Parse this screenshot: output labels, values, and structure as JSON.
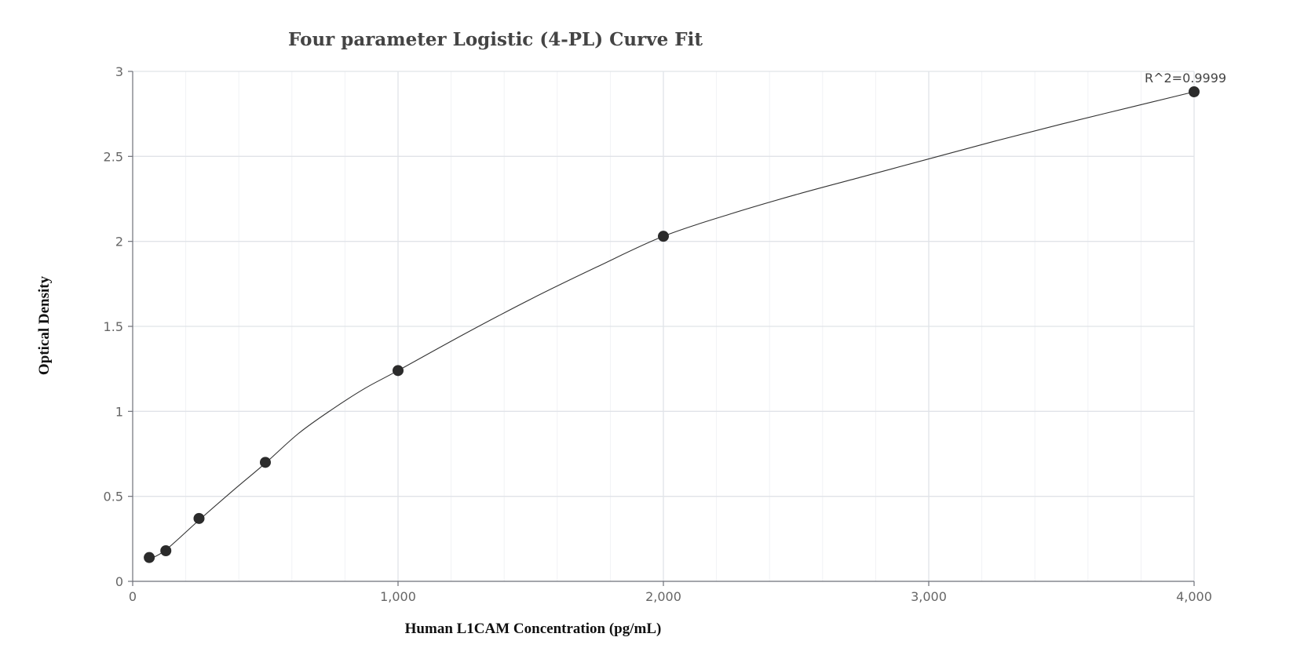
{
  "chart_data": {
    "type": "scatter",
    "title": "Four parameter Logistic (4-PL) Curve Fit",
    "xlabel": "Human L1CAM Concentration (pg/mL)",
    "ylabel": "Optical Density",
    "xlim": [
      0,
      4000
    ],
    "ylim": [
      0,
      3
    ],
    "x_ticks": [
      0,
      1000,
      2000,
      3000,
      4000
    ],
    "x_tick_labels": [
      "0",
      "1,000",
      "2,000",
      "3,000",
      "4,000"
    ],
    "y_ticks": [
      0,
      0.5,
      1,
      1.5,
      2,
      2.5,
      3
    ],
    "y_tick_labels": [
      "0",
      "0.5",
      "1",
      "1.5",
      "2",
      "2.5",
      "3"
    ],
    "grid": true,
    "series": [
      {
        "points": [
          {
            "x": 62.5,
            "y": 0.14
          },
          {
            "x": 125,
            "y": 0.18
          },
          {
            "x": 250,
            "y": 0.37
          },
          {
            "x": 500,
            "y": 0.7
          },
          {
            "x": 1000,
            "y": 1.24
          },
          {
            "x": 2000,
            "y": 2.03
          },
          {
            "x": 4000,
            "y": 2.88
          }
        ]
      }
    ],
    "fit_curve": {
      "x": [
        62.5,
        125,
        250,
        375,
        500,
        625,
        750,
        875,
        1000,
        1250,
        1500,
        1750,
        2000,
        2250,
        2500,
        2750,
        3000,
        3250,
        3500,
        3750,
        4000
      ],
      "y": [
        0.13,
        0.185,
        0.36,
        0.53,
        0.695,
        0.87,
        1.01,
        1.135,
        1.24,
        1.455,
        1.66,
        1.85,
        2.03,
        2.16,
        2.275,
        2.38,
        2.485,
        2.59,
        2.69,
        2.785,
        2.88
      ]
    },
    "annotations": [
      {
        "text": "R^2=0.9999",
        "x": 4000,
        "y": 2.88
      }
    ]
  }
}
